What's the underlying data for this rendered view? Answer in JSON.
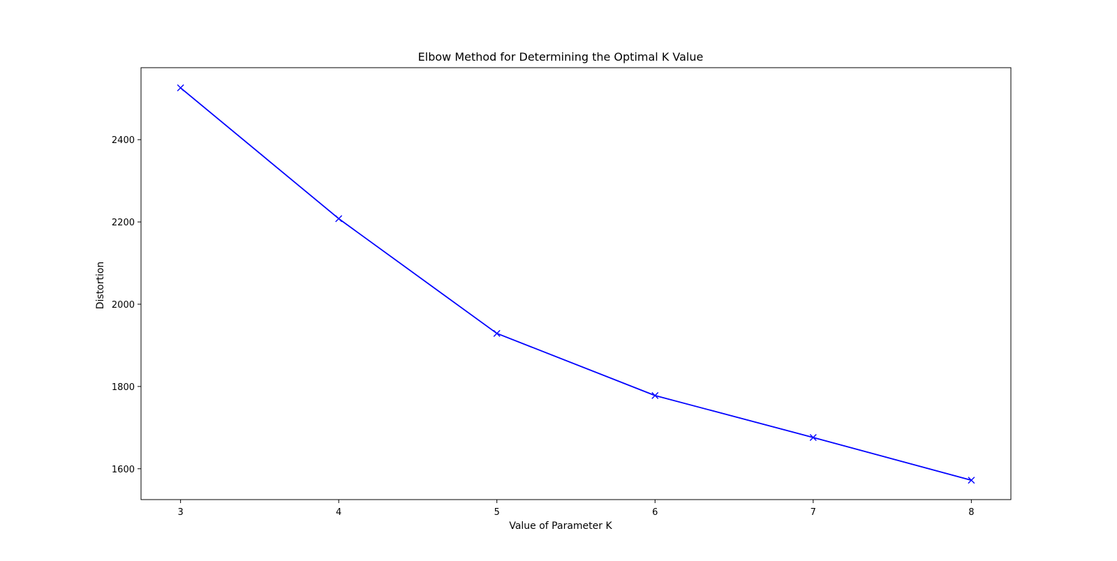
{
  "chart_data": {
    "type": "line",
    "title": "Elbow Method for Determining the Optimal K Value",
    "xlabel": "Value of Parameter K",
    "ylabel": "Distortion",
    "x": [
      3,
      4,
      5,
      6,
      7,
      8
    ],
    "series": [
      {
        "values": [
          2526,
          2208,
          1929,
          1778,
          1676,
          1572
        ],
        "color": "#0000ff",
        "marker": "x"
      }
    ],
    "xticks": [
      3,
      4,
      5,
      6,
      7,
      8
    ],
    "xtick_labels": [
      "3",
      "4",
      "5",
      "6",
      "7",
      "8"
    ],
    "yticks": [
      1600,
      1800,
      2000,
      2200,
      2400
    ],
    "ytick_labels": [
      "1600",
      "1800",
      "2000",
      "2200",
      "2400"
    ],
    "xlim": [
      2.75,
      8.25
    ],
    "ylim": [
      1525,
      2575
    ],
    "grid": false,
    "legend": false
  }
}
